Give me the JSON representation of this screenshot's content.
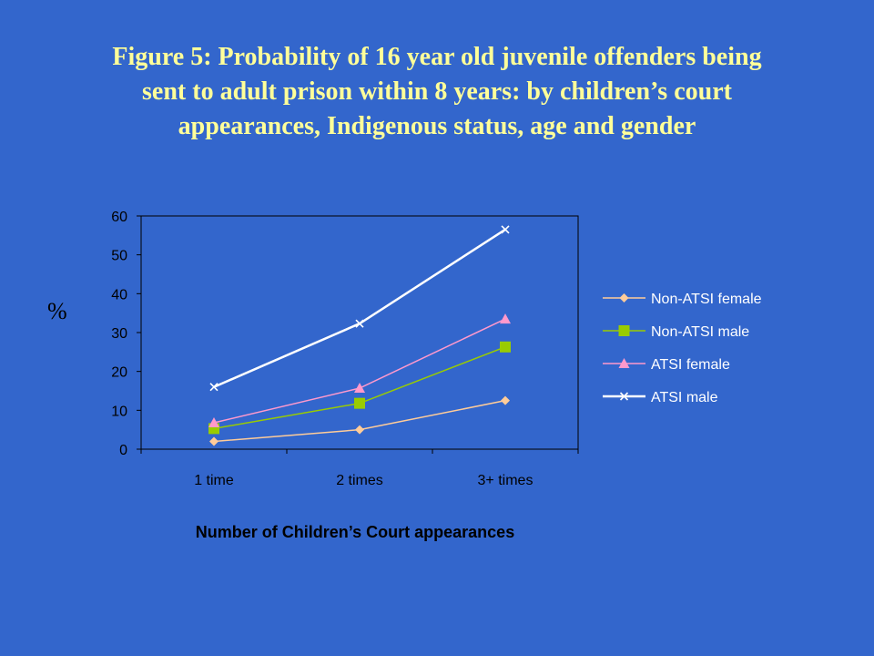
{
  "title_lines": [
    "Figure 5: Probability of 16 year old juvenile offenders being",
    "sent to adult prison within 8 years: by children’s court",
    "appearances, Indigenous status, age and gender"
  ],
  "chart_data": {
    "type": "line",
    "title": "Figure 5: Probability of 16 year old juvenile offenders being sent to adult prison within 8 years: by children’s court appearances, Indigenous status, age and gender",
    "xlabel": "Number of Children’s Court appearances",
    "ylabel": "%",
    "categories": [
      "1 time",
      "2 times",
      "3+ times"
    ],
    "ylim": [
      0,
      60
    ],
    "yticks": [
      0,
      10,
      20,
      30,
      40,
      50,
      60
    ],
    "grid": false,
    "legend": "right",
    "series": [
      {
        "name": "Non-ATSI female",
        "values": [
          2,
          5,
          12.5
        ],
        "color": "#ffcc99",
        "marker": "diamond"
      },
      {
        "name": "Non-ATSI male",
        "values": [
          5.3,
          11.8,
          26.3
        ],
        "color": "#99cc00",
        "marker": "square"
      },
      {
        "name": "ATSI female",
        "values": [
          6.8,
          15.7,
          33.5
        ],
        "color": "#ff99cc",
        "marker": "triangle"
      },
      {
        "name": "ATSI male",
        "values": [
          16,
          32.3,
          56.5
        ],
        "color": "#ffffff",
        "marker": "x"
      }
    ]
  }
}
